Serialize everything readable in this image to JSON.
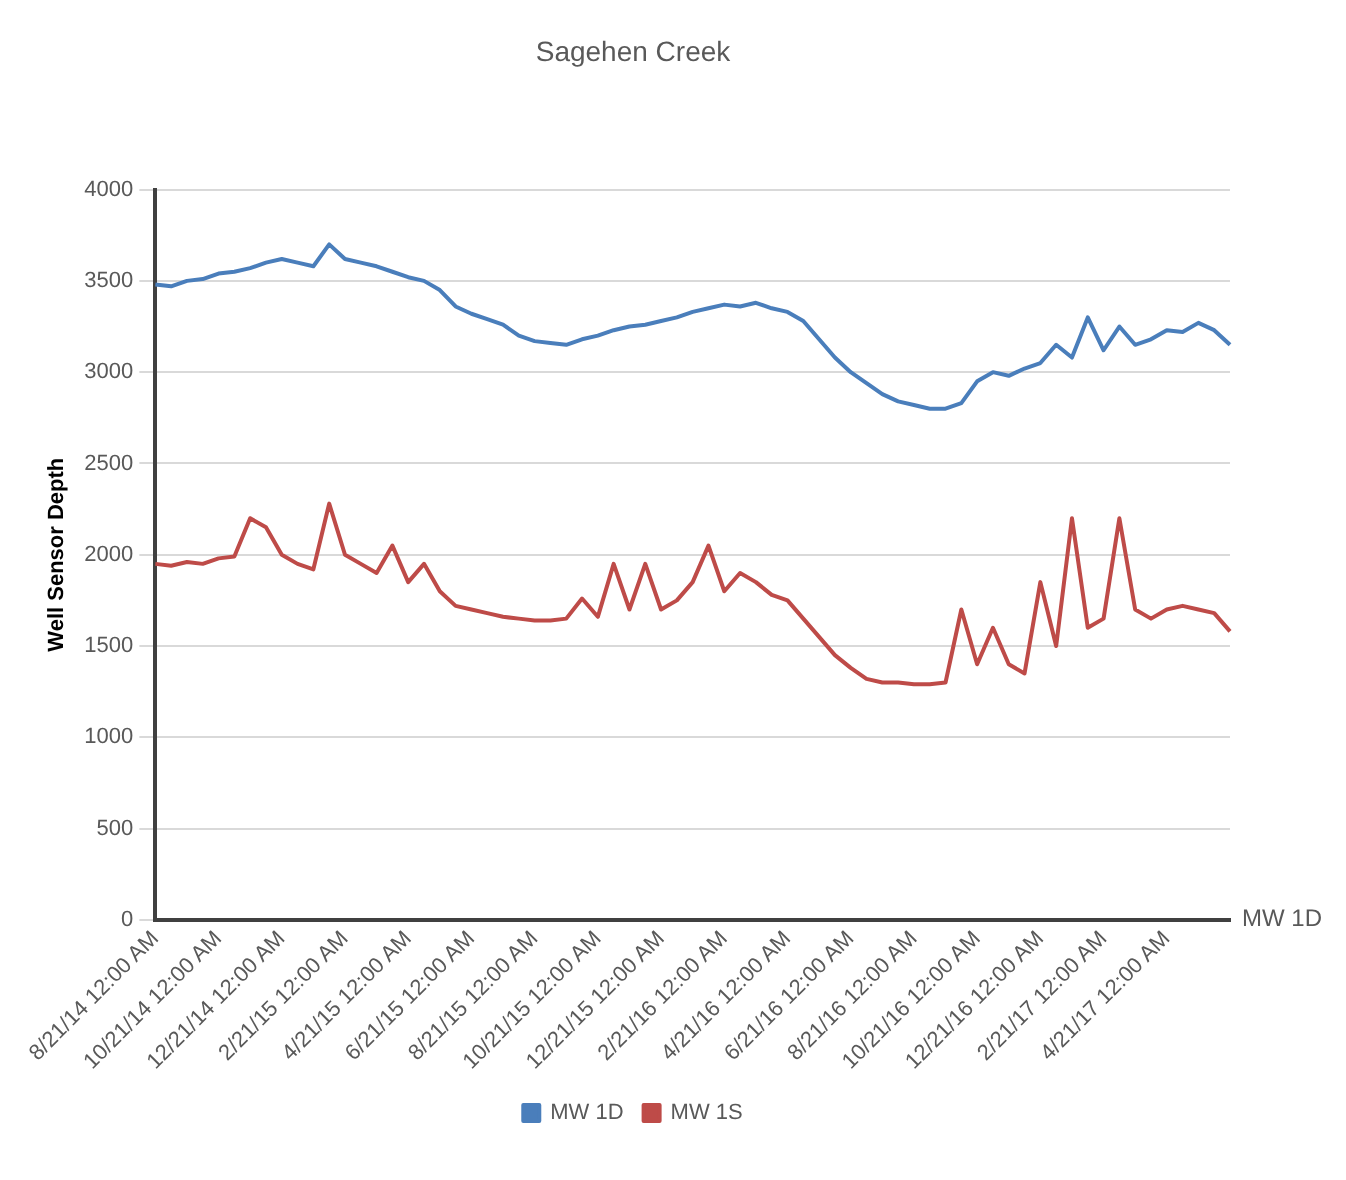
{
  "chart_data": {
    "type": "line",
    "title": "Sagehen Creek",
    "ylabel": "Well Sensor Depth",
    "categories": [
      "8/21/14 12:00 AM",
      null,
      null,
      null,
      "10/21/14 12:00 AM",
      null,
      null,
      null,
      "12/21/14 12:00 AM",
      null,
      null,
      null,
      "2/21/15 12:00 AM",
      null,
      null,
      null,
      "4/21/15 12:00 AM",
      null,
      null,
      null,
      "6/21/15 12:00 AM",
      null,
      null,
      null,
      "8/21/15 12:00 AM",
      null,
      null,
      null,
      "10/21/15 12:00 AM",
      null,
      null,
      null,
      "12/21/15 12:00 AM",
      null,
      null,
      null,
      "2/21/16 12:00 AM",
      null,
      null,
      null,
      "4/21/16 12:00 AM",
      null,
      null,
      null,
      "6/21/16 12:00 AM",
      null,
      null,
      null,
      "8/21/16 12:00 AM",
      null,
      null,
      null,
      "10/21/16 12:00 AM",
      null,
      null,
      null,
      "12/21/16 12:00 AM",
      null,
      null,
      null,
      "2/21/17 12:00 AM",
      null,
      null,
      null,
      "4/21/17 12:00 AM",
      null,
      null,
      null,
      null
    ],
    "series": [
      {
        "name": "MW 1D",
        "color": "#4a7ebb",
        "values": [
          3480,
          3470,
          3500,
          3510,
          3540,
          3550,
          3570,
          3600,
          3620,
          3600,
          3580,
          3700,
          3620,
          3600,
          3580,
          3550,
          3520,
          3500,
          3450,
          3360,
          3320,
          3290,
          3260,
          3200,
          3170,
          3160,
          3150,
          3180,
          3200,
          3230,
          3250,
          3260,
          3280,
          3300,
          3330,
          3350,
          3370,
          3360,
          3380,
          3350,
          3330,
          3280,
          3180,
          3080,
          3000,
          2940,
          2880,
          2840,
          2820,
          2800,
          2800,
          2830,
          2950,
          3000,
          2980,
          3020,
          3050,
          3150,
          3080,
          3300,
          3120,
          3250,
          3150,
          3180,
          3230,
          3220,
          3270,
          3230,
          3150
        ]
      },
      {
        "name": "MW 1S",
        "color": "#be4b48",
        "values": [
          1950,
          1940,
          1960,
          1950,
          1980,
          1990,
          2200,
          2150,
          2000,
          1950,
          1920,
          2280,
          2000,
          1950,
          1900,
          2050,
          1850,
          1950,
          1800,
          1720,
          1700,
          1680,
          1660,
          1650,
          1640,
          1640,
          1650,
          1760,
          1660,
          1950,
          1700,
          1950,
          1700,
          1750,
          1850,
          2050,
          1800,
          1900,
          1850,
          1780,
          1750,
          1650,
          1550,
          1450,
          1380,
          1320,
          1300,
          1300,
          1290,
          1290,
          1300,
          1700,
          1400,
          1600,
          1400,
          1350,
          1850,
          1500,
          2200,
          1600,
          1650,
          2200,
          1700,
          1650,
          1700,
          1720,
          1700,
          1680,
          1580
        ]
      }
    ],
    "ylim": [
      0,
      4000
    ],
    "yticks": [
      0,
      500,
      1000,
      1500,
      2000,
      2500,
      3000,
      3500,
      4000
    ],
    "grid": "y",
    "legend": "bottom",
    "marker": "none",
    "line_style": "solid",
    "annotations": [
      "MW 1D"
    ]
  }
}
